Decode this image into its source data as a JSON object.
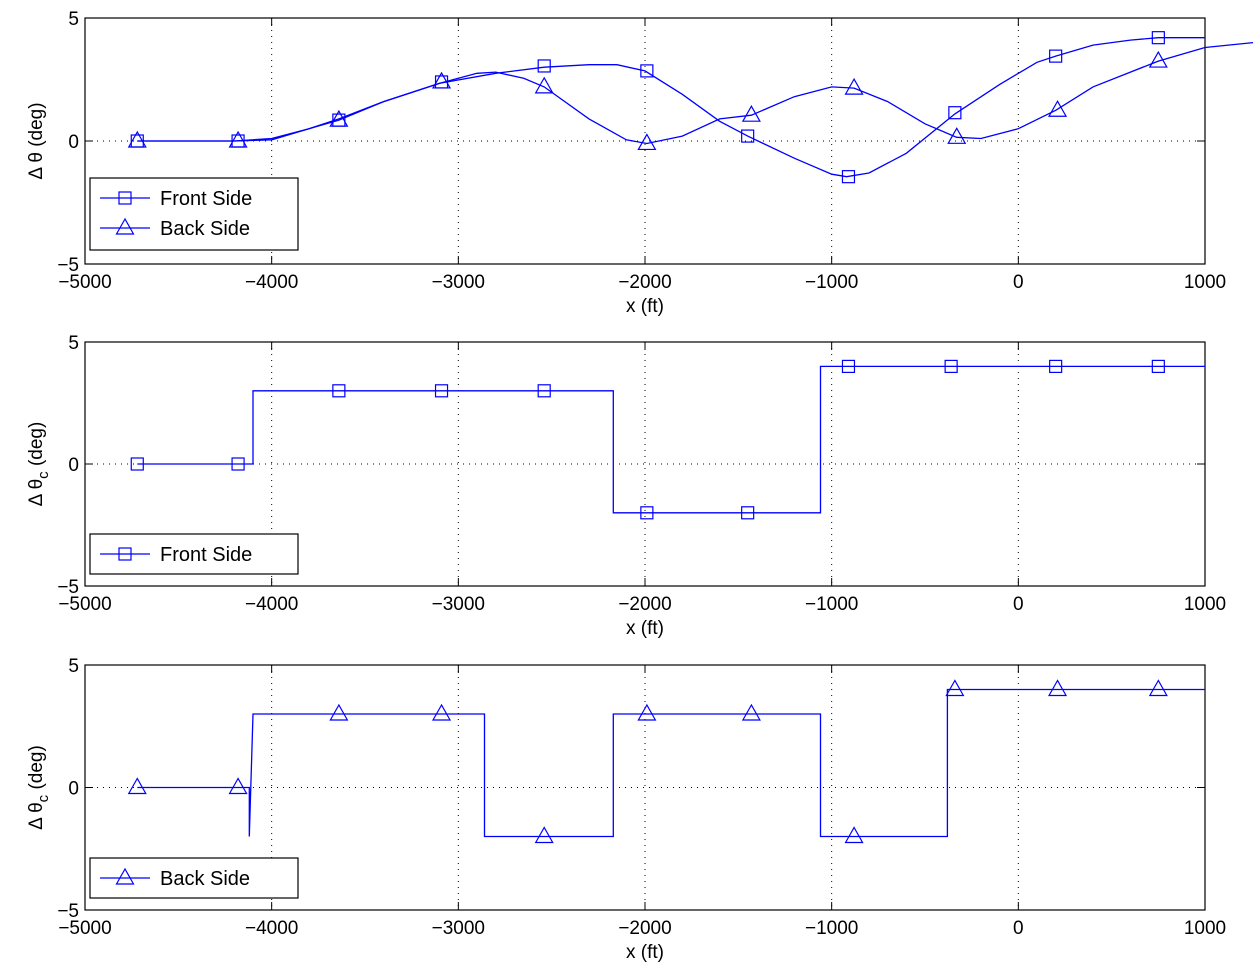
{
  "chart_data": [
    {
      "type": "line",
      "xlabel": "x (ft)",
      "ylabel": "Δ θ (deg)",
      "ylabel_sub": "",
      "xlim": [
        -5000,
        1000
      ],
      "ylim": [
        -5,
        5
      ],
      "x_ticks": [
        "-5000",
        "-4000",
        "-3000",
        "-2000",
        "-1000",
        "0",
        "1000"
      ],
      "y_ticks": [
        "-5",
        "0",
        "5"
      ],
      "grid": true,
      "legend_position": "lower-left",
      "series": [
        {
          "name": "Front Side",
          "marker": "square",
          "color": "#0000ff",
          "curve": [
            [
              -4720,
              0
            ],
            [
              -4350,
              0
            ],
            [
              -4200,
              0
            ],
            [
              -4000,
              0.1
            ],
            [
              -3800,
              0.5
            ],
            [
              -3640,
              0.9
            ],
            [
              -3400,
              1.6
            ],
            [
              -3100,
              2.35
            ],
            [
              -2800,
              2.75
            ],
            [
              -2540,
              3.0
            ],
            [
              -2300,
              3.1
            ],
            [
              -2150,
              3.1
            ],
            [
              -2000,
              2.85
            ],
            [
              -1800,
              1.9
            ],
            [
              -1600,
              0.8
            ],
            [
              -1450,
              0.2
            ],
            [
              -1200,
              -0.7
            ],
            [
              -1000,
              -1.35
            ],
            [
              -920,
              -1.45
            ],
            [
              -800,
              -1.3
            ],
            [
              -600,
              -0.5
            ],
            [
              -340,
              1.1
            ],
            [
              -100,
              2.3
            ],
            [
              100,
              3.2
            ],
            [
              200,
              3.45
            ],
            [
              400,
              3.9
            ],
            [
              600,
              4.1
            ],
            [
              750,
              4.2
            ],
            [
              1000,
              4.2
            ]
          ],
          "markers": [
            [
              -4720,
              0
            ],
            [
              -4180,
              0
            ],
            [
              -3640,
              0.85
            ],
            [
              -3090,
              2.4
            ],
            [
              -2540,
              3.05
            ],
            [
              -1990,
              2.85
            ],
            [
              -1450,
              0.2
            ],
            [
              -910,
              -1.45
            ],
            [
              -340,
              1.15
            ],
            [
              200,
              3.45
            ],
            [
              750,
              4.2
            ]
          ]
        },
        {
          "name": "Back Side",
          "marker": "triangle",
          "color": "#0000ff",
          "curve": [
            [
              -4720,
              0
            ],
            [
              -4350,
              0
            ],
            [
              -4200,
              0
            ],
            [
              -4000,
              0.05
            ],
            [
              -3800,
              0.5
            ],
            [
              -3640,
              0.85
            ],
            [
              -3400,
              1.6
            ],
            [
              -3100,
              2.35
            ],
            [
              -2900,
              2.75
            ],
            [
              -2800,
              2.8
            ],
            [
              -2650,
              2.55
            ],
            [
              -2540,
              2.2
            ],
            [
              -2300,
              0.9
            ],
            [
              -2100,
              0.05
            ],
            [
              -1990,
              -0.1
            ],
            [
              -1800,
              0.2
            ],
            [
              -1600,
              0.9
            ],
            [
              -1430,
              1.05
            ],
            [
              -1200,
              1.8
            ],
            [
              -1000,
              2.2
            ],
            [
              -880,
              2.15
            ],
            [
              -700,
              1.6
            ],
            [
              -500,
              0.7
            ],
            [
              -330,
              0.15
            ],
            [
              -200,
              0.1
            ],
            [
              0,
              0.5
            ],
            [
              200,
              1.25
            ],
            [
              400,
              2.2
            ],
            [
              750,
              3.25
            ],
            [
              1000,
              3.8
            ],
            [
              1257,
              4.0
            ]
          ],
          "markers": [
            [
              -4720,
              0
            ],
            [
              -4180,
              0
            ],
            [
              -3640,
              0.85
            ],
            [
              -3090,
              2.4
            ],
            [
              -2540,
              2.2
            ],
            [
              -1990,
              -0.1
            ],
            [
              -1430,
              1.05
            ],
            [
              -880,
              2.15
            ],
            [
              -330,
              0.15
            ],
            [
              210,
              1.25
            ],
            [
              750,
              3.25
            ]
          ]
        }
      ]
    },
    {
      "type": "line",
      "xlabel": "x (ft)",
      "ylabel": "Δ θ",
      "ylabel_sub": "c",
      "ylabel_tail": " (deg)",
      "xlim": [
        -5000,
        1000
      ],
      "ylim": [
        -5,
        5
      ],
      "x_ticks": [
        "-5000",
        "-4000",
        "-3000",
        "-2000",
        "-1000",
        "0",
        "1000"
      ],
      "y_ticks": [
        "-5",
        "0",
        "5"
      ],
      "grid": true,
      "legend_position": "lower-left",
      "series": [
        {
          "name": "Front Side",
          "marker": "square",
          "color": "#0000ff",
          "curve": [
            [
              -4720,
              0
            ],
            [
              -4100,
              0
            ],
            [
              -4100,
              3
            ],
            [
              -2170,
              3
            ],
            [
              -2170,
              -2
            ],
            [
              -1060,
              -2
            ],
            [
              -1060,
              4
            ],
            [
              1000,
              4
            ]
          ],
          "markers": [
            [
              -4720,
              0
            ],
            [
              -4180,
              0
            ],
            [
              -3640,
              3
            ],
            [
              -3090,
              3
            ],
            [
              -2540,
              3
            ],
            [
              -1990,
              -2
            ],
            [
              -1450,
              -2
            ],
            [
              -910,
              4
            ],
            [
              -360,
              4
            ],
            [
              200,
              4
            ],
            [
              750,
              4
            ]
          ]
        }
      ]
    },
    {
      "type": "line",
      "xlabel": "x (ft)",
      "ylabel": "Δ θ",
      "ylabel_sub": "c",
      "ylabel_tail": " (deg)",
      "xlim": [
        -5000,
        1000
      ],
      "ylim": [
        -5,
        5
      ],
      "x_ticks": [
        "-5000",
        "-4000",
        "-3000",
        "-2000",
        "-1000",
        "0",
        "1000"
      ],
      "y_ticks": [
        "-5",
        "0",
        "5"
      ],
      "grid": true,
      "legend_position": "lower-left",
      "series": [
        {
          "name": "Back Side",
          "marker": "triangle",
          "color": "#0000ff",
          "curve": [
            [
              -4720,
              0
            ],
            [
              -4120,
              0
            ],
            [
              -4120,
              -2
            ],
            [
              -4100,
              3
            ],
            [
              -2860,
              3
            ],
            [
              -2860,
              -2
            ],
            [
              -2170,
              -2
            ],
            [
              -2170,
              3
            ],
            [
              -1060,
              3
            ],
            [
              -1060,
              -2
            ],
            [
              -380,
              -2
            ],
            [
              -380,
              4
            ],
            [
              1000,
              4
            ]
          ],
          "markers": [
            [
              -4720,
              0
            ],
            [
              -4180,
              0
            ],
            [
              -3640,
              3
            ],
            [
              -3090,
              3
            ],
            [
              -2540,
              -2
            ],
            [
              -1990,
              3
            ],
            [
              -1430,
              3
            ],
            [
              -880,
              -2
            ],
            [
              -340,
              4
            ],
            [
              210,
              4
            ],
            [
              750,
              4
            ]
          ]
        }
      ]
    }
  ]
}
